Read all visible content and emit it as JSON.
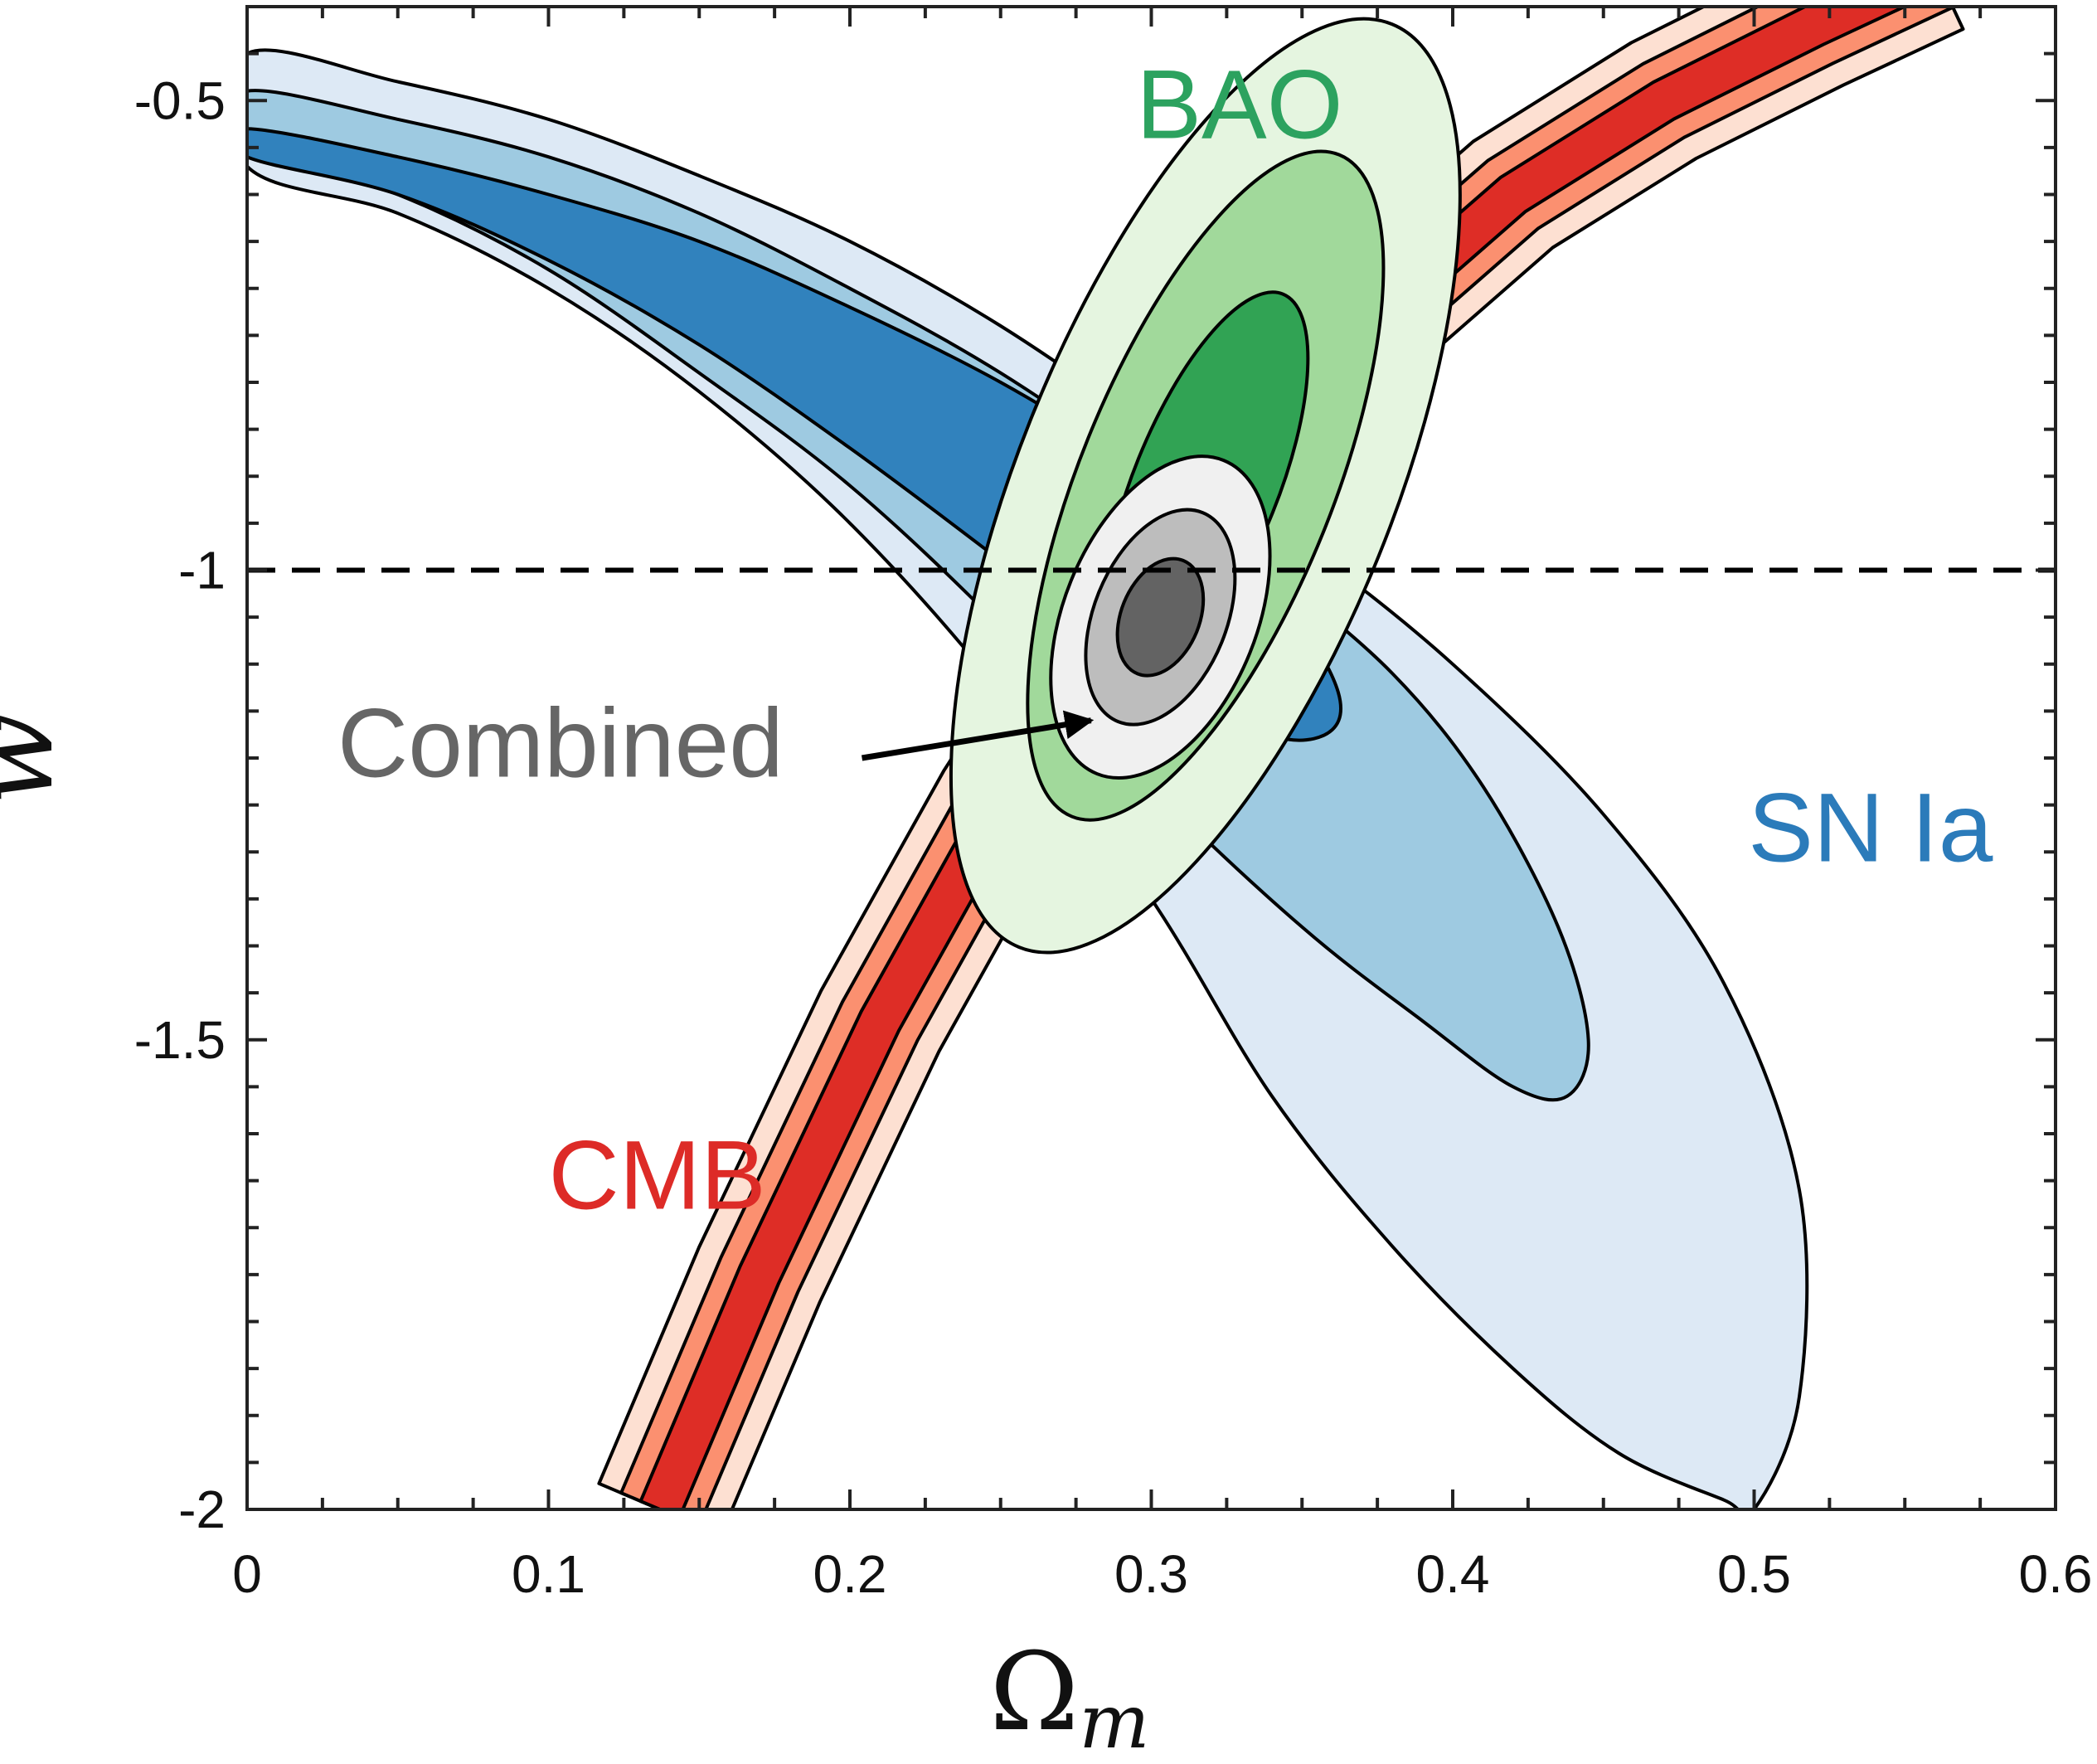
{
  "chart_data": {
    "type": "contour",
    "title": "",
    "xlabel": "Ω",
    "xlabel_subscript": "m",
    "ylabel": "w",
    "xlim": [
      0,
      0.6
    ],
    "ylim": [
      -2,
      -0.4
    ],
    "xticks": [
      0,
      0.1,
      0.2,
      0.3,
      0.4,
      0.5,
      0.6
    ],
    "xtick_labels": [
      "0",
      "0.1",
      "0.2",
      "0.3",
      "0.4",
      "0.5",
      "0.6"
    ],
    "yticks": [
      -0.5,
      -1,
      -1.5,
      -2
    ],
    "ytick_labels": [
      "-0.5",
      "-1",
      "-1.5",
      "-2"
    ],
    "reference_line": {
      "y": -1,
      "style": "dashed"
    },
    "series": [
      {
        "name": "SN Ia",
        "label": "SN Ia",
        "label_color": "#2b7bba",
        "fill_colors": [
          "#dde9f5",
          "#9ecae1",
          "#3182bd"
        ],
        "contours": [
          {
            "level": "3sigma",
            "points": [
              [
                0,
                -0.45
              ],
              [
                0.05,
                -0.48
              ],
              [
                0.1,
                -0.52
              ],
              [
                0.15,
                -0.58
              ],
              [
                0.2,
                -0.65
              ],
              [
                0.25,
                -0.74
              ],
              [
                0.3,
                -0.85
              ],
              [
                0.35,
                -0.97
              ],
              [
                0.4,
                -1.1
              ],
              [
                0.45,
                -1.26
              ],
              [
                0.49,
                -1.44
              ],
              [
                0.515,
                -1.66
              ],
              [
                0.515,
                -1.88
              ],
              [
                0.5,
                -2.0
              ],
              [
                0.49,
                -1.99
              ],
              [
                0.455,
                -1.94
              ],
              [
                0.42,
                -1.85
              ],
              [
                0.38,
                -1.72
              ],
              [
                0.34,
                -1.56
              ],
              [
                0.3,
                -1.35
              ],
              [
                0.25,
                -1.13
              ],
              [
                0.2,
                -0.95
              ],
              [
                0.15,
                -0.81
              ],
              [
                0.1,
                -0.7
              ],
              [
                0.05,
                -0.62
              ],
              [
                0,
                -0.57
              ]
            ]
          },
          {
            "level": "2sigma",
            "points": [
              [
                0,
                -0.49
              ],
              [
                0.05,
                -0.52
              ],
              [
                0.1,
                -0.56
              ],
              [
                0.15,
                -0.62
              ],
              [
                0.2,
                -0.7
              ],
              [
                0.25,
                -0.79
              ],
              [
                0.3,
                -0.9
              ],
              [
                0.34,
                -1.0
              ],
              [
                0.38,
                -1.11
              ],
              [
                0.41,
                -1.23
              ],
              [
                0.435,
                -1.38
              ],
              [
                0.445,
                -1.5
              ],
              [
                0.438,
                -1.56
              ],
              [
                0.42,
                -1.55
              ],
              [
                0.39,
                -1.48
              ],
              [
                0.35,
                -1.38
              ],
              [
                0.3,
                -1.23
              ],
              [
                0.25,
                -1.06
              ],
              [
                0.2,
                -0.91
              ],
              [
                0.15,
                -0.79
              ],
              [
                0.1,
                -0.68
              ],
              [
                0.05,
                -0.6
              ],
              [
                0,
                -0.55
              ]
            ]
          },
          {
            "level": "1sigma",
            "points": [
              [
                0,
                -0.53
              ],
              [
                0.05,
                -0.56
              ],
              [
                0.1,
                -0.6
              ],
              [
                0.15,
                -0.65
              ],
              [
                0.2,
                -0.72
              ],
              [
                0.25,
                -0.8
              ],
              [
                0.29,
                -0.88
              ],
              [
                0.325,
                -0.97
              ],
              [
                0.35,
                -1.06
              ],
              [
                0.362,
                -1.13
              ],
              [
                0.36,
                -1.17
              ],
              [
                0.345,
                -1.18
              ],
              [
                0.32,
                -1.15
              ],
              [
                0.29,
                -1.09
              ],
              [
                0.25,
                -0.99
              ],
              [
                0.2,
                -0.87
              ],
              [
                0.15,
                -0.76
              ],
              [
                0.1,
                -0.67
              ],
              [
                0.05,
                -0.6
              ],
              [
                0,
                -0.56
              ]
            ]
          }
        ]
      },
      {
        "name": "CMB",
        "label": "CMB",
        "label_color": "#dd2b27",
        "fill_colors": [
          "#fde0d2",
          "#fb9070",
          "#de2d26"
        ],
        "band_center": [
          [
            0.137,
            -2.0
          ],
          [
            0.17,
            -1.75
          ],
          [
            0.21,
            -1.48
          ],
          [
            0.25,
            -1.25
          ],
          [
            0.29,
            -1.05
          ],
          [
            0.33,
            -0.88
          ],
          [
            0.37,
            -0.74
          ],
          [
            0.42,
            -0.6
          ],
          [
            0.47,
            -0.5
          ],
          [
            0.52,
            -0.42
          ],
          [
            0.56,
            -0.36
          ]
        ],
        "half_widths": [
          0.022,
          0.014,
          0.007
        ]
      },
      {
        "name": "BAO",
        "label": "BAO",
        "label_color": "#2ca25f",
        "fill_colors": [
          "#e5f5e0",
          "#a1d99b",
          "#31a354"
        ],
        "ellipses": [
          {
            "level": "3sigma",
            "center": [
              0.318,
              -0.91
            ],
            "a": 0.062,
            "b": 0.53
          },
          {
            "level": "2sigma",
            "center": [
              0.318,
              -0.91
            ],
            "a": 0.042,
            "b": 0.38
          },
          {
            "level": "1sigma",
            "center": [
              0.318,
              -0.91
            ],
            "a": 0.024,
            "b": 0.22
          }
        ]
      },
      {
        "name": "Combined",
        "label": "Combined",
        "label_color": "#666666",
        "fill_colors": [
          "#f0f0f0",
          "#bdbdbd",
          "#636363"
        ],
        "ellipses": [
          {
            "level": "3sigma",
            "center": [
              0.303,
              -1.05
            ],
            "a": 0.032,
            "b": 0.18
          },
          {
            "level": "2sigma",
            "center": [
              0.303,
              -1.05
            ],
            "a": 0.022,
            "b": 0.12
          },
          {
            "level": "1sigma",
            "center": [
              0.303,
              -1.05
            ],
            "a": 0.013,
            "b": 0.065
          }
        ]
      }
    ],
    "annotations": [
      {
        "text": "BAO",
        "name": "bao-label",
        "x": 0.295,
        "y": -0.54,
        "color": "#2ca25f"
      },
      {
        "text": "SN Ia",
        "name": "sn-ia-label",
        "x": 0.498,
        "y": -1.31,
        "color": "#2b7bba"
      },
      {
        "text": "CMB",
        "name": "cmb-label",
        "x": 0.1,
        "y": -1.68,
        "color": "#dd2b27"
      },
      {
        "text": "Combined",
        "name": "combined-label",
        "x": 0.03,
        "y": -1.22,
        "color": "#666666"
      }
    ],
    "arrow": {
      "from": [
        0.204,
        -1.2
      ],
      "to": [
        0.28,
        -1.16
      ]
    }
  }
}
